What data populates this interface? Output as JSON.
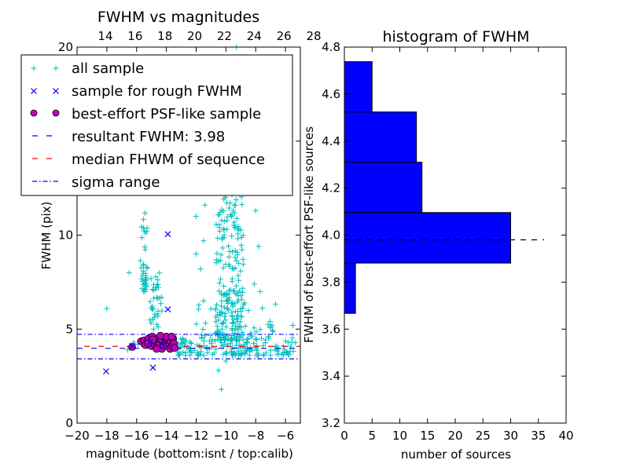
{
  "chart_data": [
    {
      "type": "scatter",
      "title": "FWHM vs magnitudes",
      "xlabel": "magnitude (bottom:isnt / top:calib)",
      "ylabel": "FWHM (pix)",
      "xlim": [
        -20,
        -5
      ],
      "ylim": [
        0,
        20
      ],
      "x_ticks": [
        -20,
        -18,
        -16,
        -14,
        -12,
        -10,
        -8,
        -6
      ],
      "x_tick_labels": [
        "−20",
        "−18",
        "−16",
        "−14",
        "−12",
        "−10",
        "−8",
        "−6"
      ],
      "y_ticks": [
        0,
        5,
        10,
        15,
        20
      ],
      "y_tick_labels": [
        "0",
        "5",
        "10",
        "15",
        "20"
      ],
      "top_axis_ticks": [
        14,
        16,
        18,
        20,
        22,
        24,
        26,
        28
      ],
      "top_axis_offset": 32.1,
      "legend": [
        {
          "label": "all sample",
          "marker": "+",
          "color": "#00bfbf"
        },
        {
          "label": "sample for rough FWHM",
          "marker": "x",
          "color": "#0000ff"
        },
        {
          "label": "best-effort PSF-like sample",
          "marker": "o",
          "color": "#bf00bf"
        },
        {
          "label": "resultant FWHM: 3.98",
          "line": "dashed",
          "color": "#0000ff"
        },
        {
          "label": "median FHWM of sequence",
          "line": "dashed",
          "color": "#ff0000"
        },
        {
          "label": "sigma range",
          "line": "dashdot",
          "color": "#0000ff"
        }
      ],
      "resultant_fwhm": 3.98,
      "median_fwhm": 4.08,
      "sigma_range": [
        3.42,
        4.72
      ],
      "rough_sample": [
        [
          -18.05,
          2.75
        ],
        [
          -14.9,
          2.95
        ],
        [
          -13.9,
          10.05
        ],
        [
          -13.9,
          6.05
        ],
        [
          -16.3,
          4.1
        ],
        [
          -15.1,
          4.3
        ],
        [
          -14.3,
          4.2
        ]
      ],
      "psf_sample_points": [
        [
          -16.3,
          4.05
        ],
        [
          -15.7,
          4.35
        ],
        [
          -15.5,
          4.4
        ],
        [
          -15.4,
          4.15
        ],
        [
          -15.2,
          4.5
        ],
        [
          -15.0,
          4.1
        ],
        [
          -14.95,
          4.6
        ],
        [
          -14.8,
          4.2
        ],
        [
          -14.7,
          4.35
        ],
        [
          -14.6,
          4.05
        ],
        [
          -14.55,
          4.5
        ],
        [
          -14.45,
          4.25
        ],
        [
          -14.35,
          4.45
        ],
        [
          -14.3,
          3.95
        ],
        [
          -14.2,
          4.15
        ],
        [
          -14.1,
          4.55
        ],
        [
          -14.05,
          4.3
        ],
        [
          -13.95,
          4.1
        ],
        [
          -13.9,
          4.45
        ],
        [
          -13.8,
          4.2
        ],
        [
          -13.75,
          3.95
        ],
        [
          -13.7,
          4.35
        ],
        [
          -13.6,
          4.1
        ],
        [
          -13.55,
          4.5
        ],
        [
          -13.5,
          4.25
        ],
        [
          -13.45,
          4.0
        ],
        [
          -14.65,
          3.95
        ],
        [
          -14.9,
          4.45
        ],
        [
          -15.25,
          4.25
        ],
        [
          -14.0,
          4.6
        ],
        [
          -13.65,
          4.6
        ],
        [
          -14.4,
          4.65
        ]
      ],
      "all_sample_clusters": [
        {
          "count": 40,
          "x": [
            -15.75,
            -15.25
          ],
          "y": [
            7.0,
            11.2
          ]
        },
        {
          "count": 35,
          "x": [
            -15.1,
            -14.3
          ],
          "y": [
            5.0,
            8.0
          ]
        },
        {
          "count": 220,
          "x": [
            -10.7,
            -8.8
          ],
          "y": [
            4.4,
            12.5
          ]
        },
        {
          "count": 55,
          "x": [
            -10.6,
            -9.2
          ],
          "y": [
            12.5,
            19.5
          ]
        },
        {
          "count": 160,
          "x": [
            -13.3,
            -5.3
          ],
          "y": [
            3.6,
            4.6
          ]
        },
        {
          "count": 40,
          "x": [
            -12.0,
            -6.5
          ],
          "y": [
            4.6,
            6.5
          ]
        }
      ],
      "all_sample_points": [
        [
          -18.0,
          6.1
        ],
        [
          -16.5,
          8.0
        ],
        [
          -15.9,
          4.2
        ],
        [
          -10.3,
          1.8
        ],
        [
          -10.5,
          2.8
        ],
        [
          -10.0,
          3.3
        ],
        [
          -9.3,
          20.0
        ],
        [
          -12.0,
          11.0
        ],
        [
          -11.4,
          11.6
        ],
        [
          -8.0,
          11.3
        ],
        [
          -7.8,
          9.4
        ],
        [
          -11.5,
          9.7
        ],
        [
          -12.0,
          9.0
        ],
        [
          -11.7,
          8.2
        ],
        [
          -7.7,
          7.0
        ],
        [
          -8.1,
          7.4
        ],
        [
          -6.9,
          5.2
        ],
        [
          -5.5,
          5.2
        ],
        [
          -11.5,
          6.5
        ],
        [
          -7.6,
          12.4
        ],
        [
          -12.9,
          4.5
        ],
        [
          -16.6,
          3.9
        ],
        [
          -16.2,
          4.3
        ],
        [
          -13.2,
          4.2
        ],
        [
          -12.5,
          4.0
        ],
        [
          -12.3,
          3.75
        ]
      ]
    },
    {
      "type": "bar",
      "orientation": "horizontal",
      "title": "histogram of FWHM",
      "xlabel": "number of sources",
      "ylabel": "FWHM of best-effort PSF-like sources",
      "xlim": [
        0,
        40
      ],
      "ylim": [
        3.2,
        4.8
      ],
      "x_ticks": [
        0,
        5,
        10,
        15,
        20,
        25,
        30,
        35,
        40
      ],
      "y_ticks": [
        3.2,
        3.4,
        3.6,
        3.8,
        4.0,
        4.2,
        4.4,
        4.6,
        4.8
      ],
      "y_tick_labels": [
        "3.2",
        "3.4",
        "3.6",
        "3.8",
        "4.0",
        "4.2",
        "4.4",
        "4.6",
        "4.8"
      ],
      "bins": [
        {
          "from": 3.667,
          "to": 3.881,
          "count": 2
        },
        {
          "from": 3.881,
          "to": 4.096,
          "count": 30
        },
        {
          "from": 4.096,
          "to": 4.31,
          "count": 14
        },
        {
          "from": 4.31,
          "to": 4.524,
          "count": 13
        },
        {
          "from": 4.524,
          "to": 4.524,
          "count": 0
        },
        {
          "from": 4.524,
          "to": 4.738,
          "count": 5
        }
      ],
      "bar_color": "#0000ff",
      "reference_line": {
        "value": 3.98,
        "x_range": [
          0,
          36
        ],
        "style": "dashed",
        "color": "#000000"
      }
    }
  ]
}
